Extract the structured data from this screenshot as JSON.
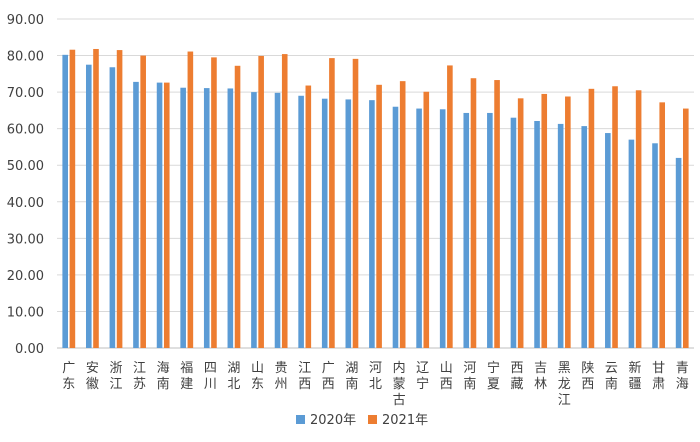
{
  "chart_data": {
    "type": "bar",
    "title": "",
    "xlabel": "",
    "ylabel": "",
    "ylim": [
      0,
      90
    ],
    "ytick_step": 10,
    "ytick_labels": [
      "0.00",
      "10.00",
      "20.00",
      "30.00",
      "40.00",
      "50.00",
      "60.00",
      "70.00",
      "80.00",
      "90.00"
    ],
    "grid": true,
    "legend_position": "bottom",
    "categories": [
      "广东",
      "安徽",
      "浙江",
      "江苏",
      "海南",
      "福建",
      "四川",
      "湖北",
      "山东",
      "贵州",
      "江西",
      "广西",
      "湖南",
      "河北",
      "内蒙古",
      "辽宁",
      "山西",
      "河南",
      "宁夏",
      "西藏",
      "吉林",
      "黑龙江",
      "陕西",
      "云南",
      "新疆",
      "甘肃",
      "青海"
    ],
    "series": [
      {
        "name": "2020年",
        "color": "#5b9bd5",
        "values": [
          80.2,
          77.5,
          76.8,
          72.8,
          72.6,
          71.2,
          71.1,
          71.0,
          70.0,
          69.8,
          69.0,
          68.2,
          68.0,
          67.8,
          66.0,
          65.5,
          65.3,
          64.3,
          64.3,
          63.0,
          62.1,
          61.3,
          60.7,
          58.8,
          57.0,
          56.0,
          52.0
        ]
      },
      {
        "name": "2021年",
        "color": "#ed7d31",
        "values": [
          81.6,
          81.8,
          81.5,
          80.0,
          72.6,
          81.1,
          79.5,
          77.2,
          79.9,
          80.4,
          71.8,
          79.3,
          79.1,
          72.0,
          73.0,
          70.1,
          77.3,
          73.8,
          73.3,
          68.3,
          69.5,
          68.8,
          70.9,
          71.6,
          70.5,
          67.2,
          65.5
        ]
      }
    ]
  }
}
